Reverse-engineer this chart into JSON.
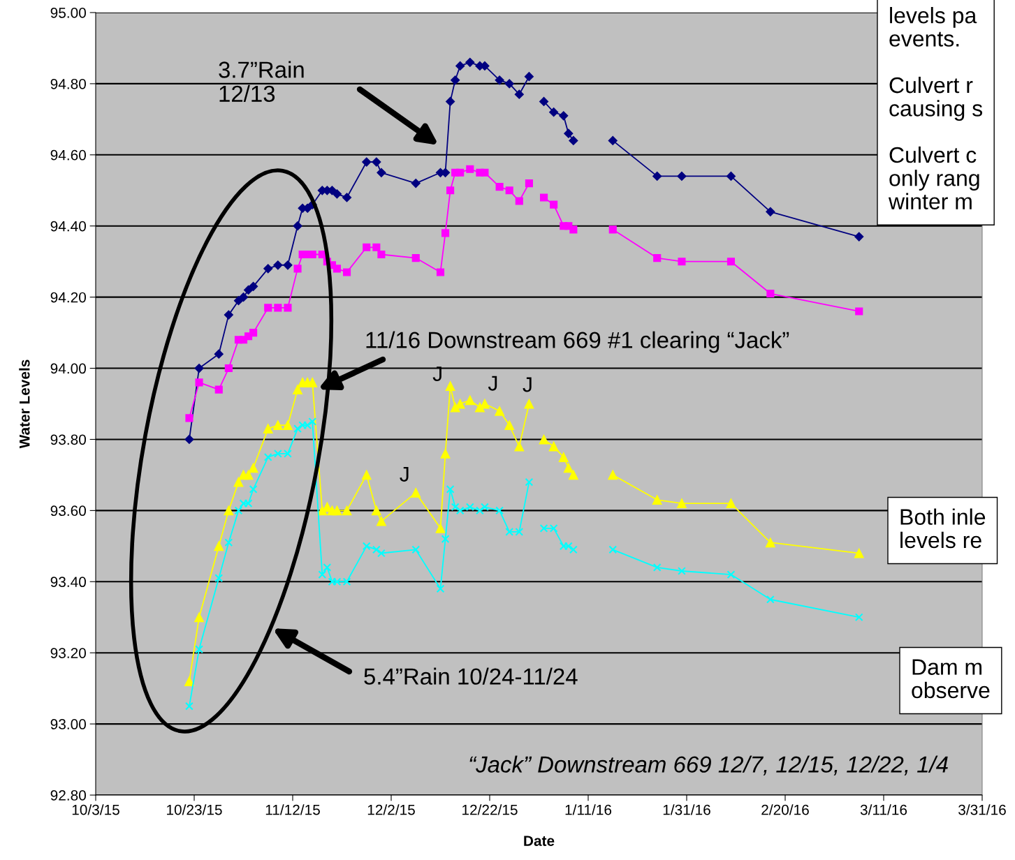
{
  "chart_data": {
    "type": "line",
    "xlabel": "Date",
    "ylabel": "Water Levels",
    "x": [
      "2015-10-22",
      "2015-10-24",
      "2015-10-28",
      "2015-10-30",
      "2015-11-01",
      "2015-11-02",
      "2015-11-03",
      "2015-11-04",
      "2015-11-07",
      "2015-11-09",
      "2015-11-11",
      "2015-11-13",
      "2015-11-14",
      "2015-11-15",
      "2015-11-16",
      "2015-11-18",
      "2015-11-19",
      "2015-11-20",
      "2015-11-21",
      "2015-11-23",
      "2015-11-27",
      "2015-11-29",
      "2015-11-30",
      "2015-12-07",
      "2015-12-12",
      "2015-12-13",
      "2015-12-14",
      "2015-12-15",
      "2015-12-16",
      "2015-12-18",
      "2015-12-20",
      "2015-12-21",
      "2015-12-24",
      "2015-12-26",
      "2015-12-28",
      "2015-12-30",
      "2016-01-01",
      "2016-01-02",
      "2016-01-04",
      "2016-01-06",
      "2016-01-07",
      "2016-01-08",
      "2016-01-12",
      "2016-01-16",
      "2016-01-25",
      "2016-01-30",
      "2016-02-09",
      "2016-02-17",
      "2016-03-06"
    ],
    "series": [
      {
        "color": "#000080",
        "marker": "diamond",
        "values": [
          93.8,
          94.0,
          94.04,
          94.15,
          94.19,
          94.2,
          94.22,
          94.23,
          94.28,
          94.29,
          94.29,
          94.4,
          94.45,
          94.45,
          94.46,
          94.5,
          94.5,
          94.5,
          94.49,
          94.48,
          94.58,
          94.58,
          94.55,
          94.52,
          94.55,
          94.55,
          94.75,
          94.81,
          94.85,
          94.86,
          94.85,
          94.85,
          94.81,
          94.8,
          94.77,
          94.82,
          null,
          94.75,
          94.72,
          94.71,
          94.66,
          94.64,
          null,
          94.64,
          94.54,
          94.54,
          94.54,
          94.44,
          94.37
        ]
      },
      {
        "color": "#ff00ff",
        "marker": "square",
        "values": [
          93.86,
          93.96,
          93.94,
          94.0,
          94.08,
          94.08,
          94.09,
          94.1,
          94.17,
          94.17,
          94.17,
          94.28,
          94.32,
          94.32,
          94.32,
          94.32,
          94.3,
          94.29,
          94.28,
          94.27,
          94.34,
          94.34,
          94.32,
          94.31,
          94.27,
          94.38,
          94.5,
          94.55,
          94.55,
          94.56,
          94.55,
          94.55,
          94.51,
          94.5,
          94.47,
          94.52,
          null,
          94.48,
          94.46,
          94.4,
          94.4,
          94.39,
          null,
          94.39,
          94.31,
          94.3,
          94.3,
          94.21,
          94.16
        ]
      },
      {
        "color": "#ffff00",
        "marker": "triangle",
        "values": [
          93.12,
          93.3,
          93.5,
          93.6,
          93.68,
          93.7,
          93.7,
          93.72,
          93.83,
          93.84,
          93.84,
          93.94,
          93.96,
          93.96,
          93.96,
          93.6,
          93.61,
          93.6,
          93.6,
          93.6,
          93.7,
          93.6,
          93.57,
          93.65,
          93.55,
          93.76,
          93.95,
          93.89,
          93.9,
          93.91,
          93.89,
          93.9,
          93.88,
          93.84,
          93.78,
          93.9,
          null,
          93.8,
          93.78,
          93.75,
          93.72,
          93.7,
          null,
          93.7,
          93.63,
          93.62,
          93.62,
          93.51,
          93.48
        ]
      },
      {
        "color": "#00ffff",
        "marker": "cross",
        "values": [
          93.05,
          93.21,
          93.41,
          93.51,
          93.6,
          93.62,
          93.62,
          93.66,
          93.75,
          93.76,
          93.76,
          93.83,
          93.84,
          93.84,
          93.85,
          93.42,
          93.44,
          93.4,
          93.4,
          93.4,
          93.5,
          93.49,
          93.48,
          93.49,
          93.38,
          93.52,
          93.66,
          93.61,
          93.6,
          93.61,
          93.6,
          93.61,
          93.6,
          93.54,
          93.54,
          93.68,
          null,
          93.55,
          93.55,
          93.5,
          93.5,
          93.49,
          null,
          93.49,
          93.44,
          93.43,
          93.42,
          93.35,
          93.3
        ]
      }
    ],
    "xlim": [
      "2015-10-03",
      "2016-03-31"
    ],
    "xticks": [
      {
        "value": "2015-10-03",
        "label": "10/3/15"
      },
      {
        "value": "2015-10-23",
        "label": "10/23/15"
      },
      {
        "value": "2015-11-12",
        "label": "11/12/15"
      },
      {
        "value": "2015-12-02",
        "label": "12/2/15"
      },
      {
        "value": "2015-12-22",
        "label": "12/22/15"
      },
      {
        "value": "2016-01-11",
        "label": "1/11/16"
      },
      {
        "value": "2016-01-31",
        "label": "1/31/16"
      },
      {
        "value": "2016-02-20",
        "label": "2/20/16"
      },
      {
        "value": "2016-03-11",
        "label": "3/11/16"
      },
      {
        "value": "2016-03-31",
        "label": "3/31/16"
      }
    ],
    "ylim": [
      92.8,
      95.0
    ],
    "yticks": [
      {
        "value": 92.8,
        "label": "92.80"
      },
      {
        "value": 93.0,
        "label": "93.00"
      },
      {
        "value": 93.2,
        "label": "93.20"
      },
      {
        "value": 93.4,
        "label": "93.40"
      },
      {
        "value": 93.6,
        "label": "93.60"
      },
      {
        "value": 93.8,
        "label": "93.80"
      },
      {
        "value": 94.0,
        "label": "94.00"
      },
      {
        "value": 94.2,
        "label": "94.20"
      },
      {
        "value": 94.4,
        "label": "94.40"
      },
      {
        "value": 94.6,
        "label": "94.60"
      },
      {
        "value": 94.8,
        "label": "94.80"
      },
      {
        "value": 95.0,
        "label": "95.00"
      }
    ],
    "grid": "y",
    "legend": false,
    "annotations": [
      "3.7”Rain\n12/13",
      "11/16 Downstream 669 #1 clearing “Jack”",
      "5.4”Rain 10/24-11/24",
      {
        "text": "J",
        "x": "2015-12-14",
        "y": 93.95
      },
      {
        "text": "J",
        "x": "2015-12-20",
        "y": 93.89
      },
      {
        "text": "J",
        "x": "2015-12-30",
        "y": 93.9
      },
      {
        "text": "J",
        "x": "2015-12-07",
        "y": 93.65
      },
      "“Jack” Downstream 669 12/7, 12/15, 12/22, 1/4",
      "levels pa\nevents.\n\nCulvert r\ncausing s\n\nCulvert c\nonly rang\nwinter m",
      "Both inle\nlevels re",
      "Dam m\nobserve"
    ]
  }
}
